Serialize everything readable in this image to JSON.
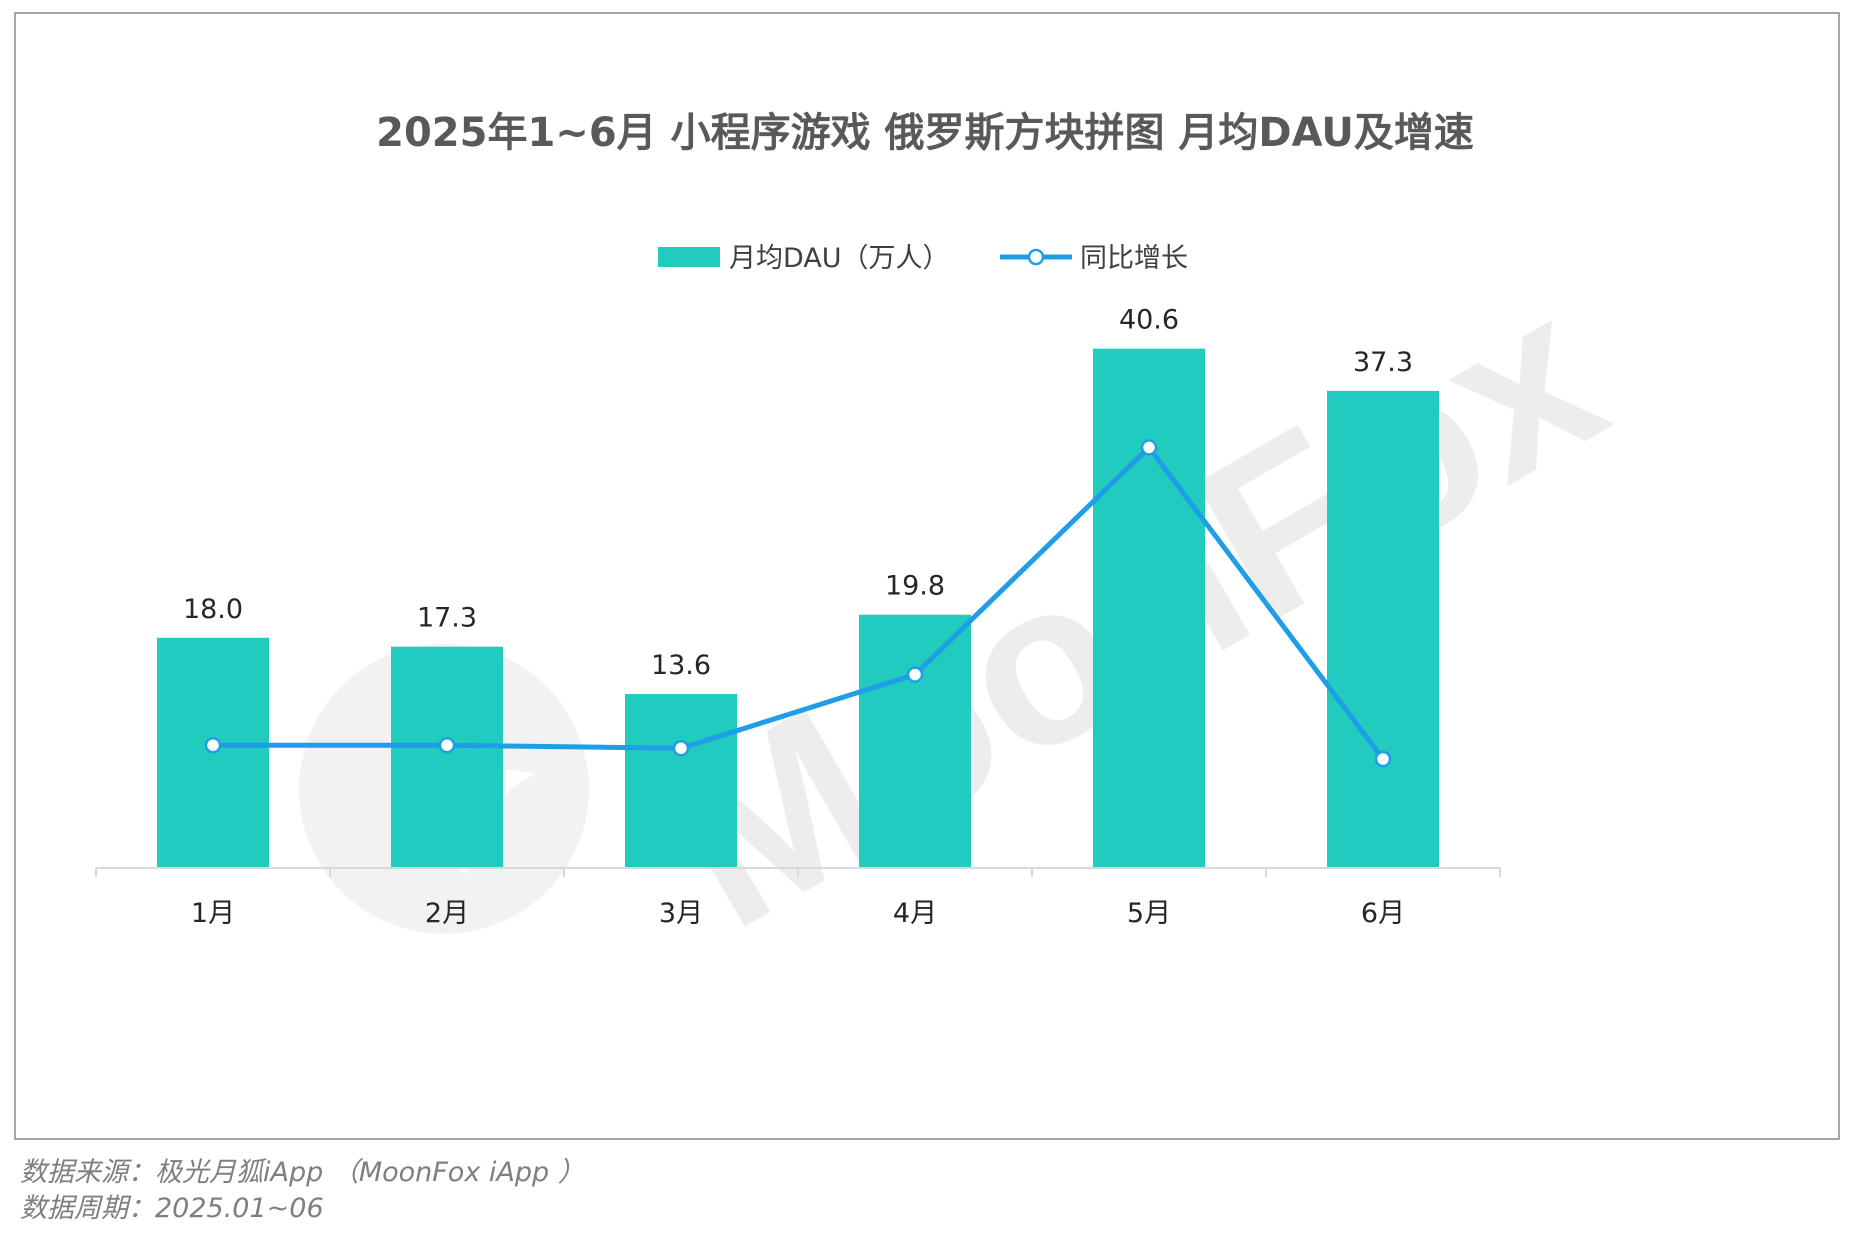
{
  "chart_data": {
    "type": "bar",
    "title": "2025年1~6月 小程序游戏 俄罗斯方块拼图 月均DAU及增速",
    "categories": [
      "1月",
      "2月",
      "3月",
      "4月",
      "5月",
      "6月"
    ],
    "series": [
      {
        "name": "月均DAU（万人）",
        "type": "bar",
        "values": [
          18.0,
          17.3,
          13.6,
          19.8,
          40.6,
          37.3
        ],
        "value_labels": [
          "18.0",
          "17.3",
          "13.6",
          "19.8",
          "40.6",
          "37.3"
        ],
        "color": "#21cbbd"
      },
      {
        "name": "同比增长",
        "type": "line",
        "relative_values": [
          0.0,
          0.0,
          -0.2,
          4.6,
          19.4,
          -0.9
        ],
        "color": "#1f9ee8",
        "marker": "circle-hollow"
      }
    ],
    "bar_ylim": [
      0,
      48
    ],
    "line_relative_ylim": [
      -8,
      32
    ],
    "legend_position": "top-center",
    "grid": false,
    "xlabel": "",
    "ylabel": ""
  },
  "watermark": "MoonFox",
  "footer": {
    "source": "数据来源：极光月狐iApp （MoonFox iApp ）",
    "period": "数据周期：2025.01~06"
  },
  "colors": {
    "text_dark": "#595959",
    "label": "#262626",
    "axis": "#d9d9d9",
    "watermark": "#e6e6e6"
  }
}
